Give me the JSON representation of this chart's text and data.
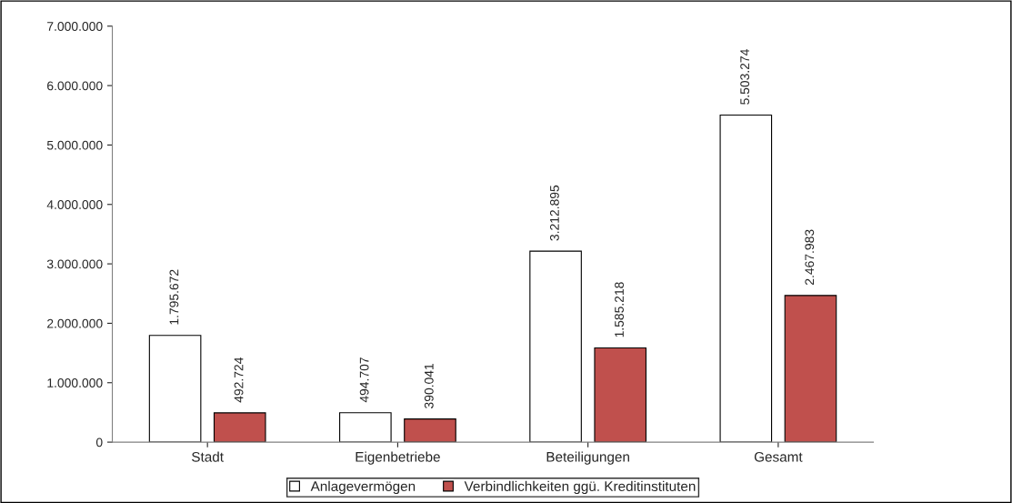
{
  "chart_data": {
    "type": "bar",
    "categories": [
      "Stadt",
      "Eigenbetriebe",
      "Beteiligungen",
      "Gesamt"
    ],
    "series": [
      {
        "name": "Anlagevermögen",
        "color": "#ffffff",
        "values": [
          1795672,
          494707,
          3212895,
          5503274
        ],
        "value_labels": [
          "1.795.672",
          "494.707",
          "3.212.895",
          "5.503.274"
        ]
      },
      {
        "name": "Verbindlichkeiten ggü. Kreditinstituten",
        "color": "#c0504d",
        "values": [
          492724,
          390041,
          1585218,
          2467983
        ],
        "value_labels": [
          "492.724",
          "390.041",
          "1.585.218",
          "2.467.983"
        ]
      }
    ],
    "ylim": [
      0,
      7000000
    ],
    "yticks": [
      {
        "value": 0,
        "label": "0"
      },
      {
        "value": 1000000,
        "label": "1.000.000"
      },
      {
        "value": 2000000,
        "label": "2.000.000"
      },
      {
        "value": 3000000,
        "label": "3.000.000"
      },
      {
        "value": 4000000,
        "label": "4.000.000"
      },
      {
        "value": 5000000,
        "label": "5.000.000"
      },
      {
        "value": 6000000,
        "label": "6.000.000"
      },
      {
        "value": 7000000,
        "label": "7.000.000"
      }
    ],
    "grid": false,
    "legend": "bottom"
  }
}
